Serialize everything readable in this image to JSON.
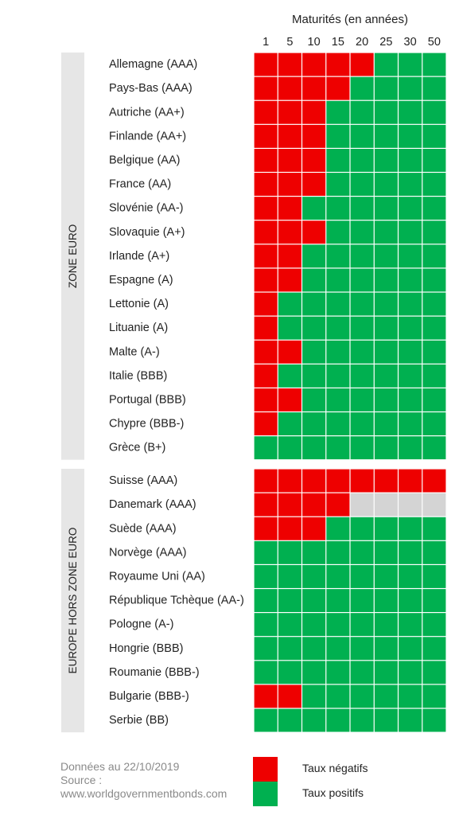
{
  "chart_data": {
    "type": "heatmap",
    "title": "Maturités (en années)",
    "columns": [
      "1",
      "5",
      "10",
      "15",
      "20",
      "25",
      "30",
      "50"
    ],
    "value_key": {
      "N": "Taux négatifs",
      "P": "Taux positifs",
      "X": ""
    },
    "colors": {
      "N": "#ee0000",
      "P": "#00b050",
      "X": "#d4d4d4"
    },
    "groups": [
      {
        "name": "ZONE EURO",
        "rows": [
          {
            "label": "Allemagne (AAA)",
            "values": [
              "N",
              "N",
              "N",
              "N",
              "N",
              "P",
              "P",
              "P"
            ]
          },
          {
            "label": "Pays-Bas (AAA)",
            "values": [
              "N",
              "N",
              "N",
              "N",
              "P",
              "P",
              "P",
              "P"
            ]
          },
          {
            "label": "Autriche (AA+)",
            "values": [
              "N",
              "N",
              "N",
              "P",
              "P",
              "P",
              "P",
              "P"
            ]
          },
          {
            "label": "Finlande (AA+)",
            "values": [
              "N",
              "N",
              "N",
              "P",
              "P",
              "P",
              "P",
              "P"
            ]
          },
          {
            "label": "Belgique (AA)",
            "values": [
              "N",
              "N",
              "N",
              "P",
              "P",
              "P",
              "P",
              "P"
            ]
          },
          {
            "label": "France (AA)",
            "values": [
              "N",
              "N",
              "N",
              "P",
              "P",
              "P",
              "P",
              "P"
            ]
          },
          {
            "label": "Slovénie (AA-)",
            "values": [
              "N",
              "N",
              "P",
              "P",
              "P",
              "P",
              "P",
              "P"
            ]
          },
          {
            "label": "Slovaquie (A+)",
            "values": [
              "N",
              "N",
              "N",
              "P",
              "P",
              "P",
              "P",
              "P"
            ]
          },
          {
            "label": "Irlande (A+)",
            "values": [
              "N",
              "N",
              "P",
              "P",
              "P",
              "P",
              "P",
              "P"
            ]
          },
          {
            "label": "Espagne (A)",
            "values": [
              "N",
              "N",
              "P",
              "P",
              "P",
              "P",
              "P",
              "P"
            ]
          },
          {
            "label": "Lettonie (A)",
            "values": [
              "N",
              "P",
              "P",
              "P",
              "P",
              "P",
              "P",
              "P"
            ]
          },
          {
            "label": "Lituanie (A)",
            "values": [
              "N",
              "P",
              "P",
              "P",
              "P",
              "P",
              "P",
              "P"
            ]
          },
          {
            "label": "Malte (A-)",
            "values": [
              "N",
              "N",
              "P",
              "P",
              "P",
              "P",
              "P",
              "P"
            ]
          },
          {
            "label": "Italie (BBB)",
            "values": [
              "N",
              "P",
              "P",
              "P",
              "P",
              "P",
              "P",
              "P"
            ]
          },
          {
            "label": "Portugal (BBB)",
            "values": [
              "N",
              "N",
              "P",
              "P",
              "P",
              "P",
              "P",
              "P"
            ]
          },
          {
            "label": "Chypre (BBB-)",
            "values": [
              "N",
              "P",
              "P",
              "P",
              "P",
              "P",
              "P",
              "P"
            ]
          },
          {
            "label": "Grèce (B+)",
            "values": [
              "P",
              "P",
              "P",
              "P",
              "P",
              "P",
              "P",
              "P"
            ]
          }
        ]
      },
      {
        "name": "EUROPE HORS ZONE EURO",
        "rows": [
          {
            "label": "Suisse (AAA)",
            "values": [
              "N",
              "N",
              "N",
              "N",
              "N",
              "N",
              "N",
              "N"
            ]
          },
          {
            "label": "Danemark (AAA)",
            "values": [
              "N",
              "N",
              "N",
              "N",
              "X",
              "X",
              "X",
              "X"
            ]
          },
          {
            "label": "Suède (AAA)",
            "values": [
              "N",
              "N",
              "N",
              "P",
              "P",
              "P",
              "P",
              "P"
            ]
          },
          {
            "label": "Norvège (AAA)",
            "values": [
              "P",
              "P",
              "P",
              "P",
              "P",
              "P",
              "P",
              "P"
            ]
          },
          {
            "label": "Royaume Uni (AA)",
            "values": [
              "P",
              "P",
              "P",
              "P",
              "P",
              "P",
              "P",
              "P"
            ]
          },
          {
            "label": "République Tchèque (AA-)",
            "values": [
              "P",
              "P",
              "P",
              "P",
              "P",
              "P",
              "P",
              "P"
            ]
          },
          {
            "label": "Pologne (A-)",
            "values": [
              "P",
              "P",
              "P",
              "P",
              "P",
              "P",
              "P",
              "P"
            ]
          },
          {
            "label": "Hongrie (BBB)",
            "values": [
              "P",
              "P",
              "P",
              "P",
              "P",
              "P",
              "P",
              "P"
            ]
          },
          {
            "label": "Roumanie (BBB-)",
            "values": [
              "P",
              "P",
              "P",
              "P",
              "P",
              "P",
              "P",
              "P"
            ]
          },
          {
            "label": "Bulgarie (BBB-)",
            "values": [
              "N",
              "N",
              "P",
              "P",
              "P",
              "P",
              "P",
              "P"
            ]
          },
          {
            "label": "Serbie (BB)",
            "values": [
              "P",
              "P",
              "P",
              "P",
              "P",
              "P",
              "P",
              "P"
            ]
          }
        ]
      }
    ],
    "legend": [
      {
        "key": "N",
        "label": "Taux négatifs"
      },
      {
        "key": "P",
        "label": "Taux positifs"
      }
    ]
  },
  "footer": {
    "line1": "Données au 22/10/2019",
    "line2": "Source :",
    "line3": "www.worldgovernmentbonds.com"
  }
}
